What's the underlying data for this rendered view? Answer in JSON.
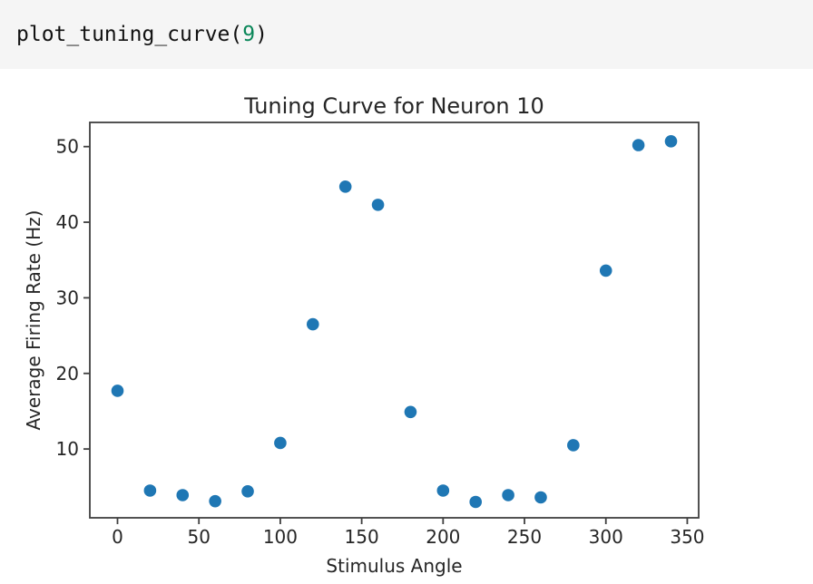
{
  "code_cell": {
    "code_before": "plot_tuning_curve(",
    "code_number": "9",
    "code_after": ")",
    "background_color": "#f5f5f5",
    "text_color": "#111111",
    "number_color": "#098658"
  },
  "chart_data": {
    "type": "scatter",
    "title": "Tuning Curve for Neuron 10",
    "xlabel": "Stimulus Angle",
    "ylabel": "Average Firing Rate (Hz)",
    "x": [
      0,
      20,
      40,
      60,
      80,
      100,
      120,
      140,
      160,
      180,
      200,
      220,
      240,
      260,
      280,
      300,
      320,
      340
    ],
    "y": [
      17.7,
      4.5,
      3.9,
      3.1,
      4.4,
      10.8,
      26.5,
      44.7,
      42.3,
      14.9,
      4.5,
      3.0,
      3.9,
      3.6,
      10.5,
      33.6,
      50.2,
      50.7
    ],
    "xlim": [
      -17,
      357
    ],
    "ylim": [
      0.9,
      53.2
    ],
    "xticks": [
      0,
      50,
      100,
      150,
      200,
      250,
      300,
      350
    ],
    "yticks": [
      10,
      20,
      30,
      40,
      50
    ],
    "grid": false,
    "legend": null,
    "marker_color": "#1f77b4",
    "spine_color": "#3f3f3f",
    "text_color": "#262626",
    "plot_background": "#ffffff"
  }
}
